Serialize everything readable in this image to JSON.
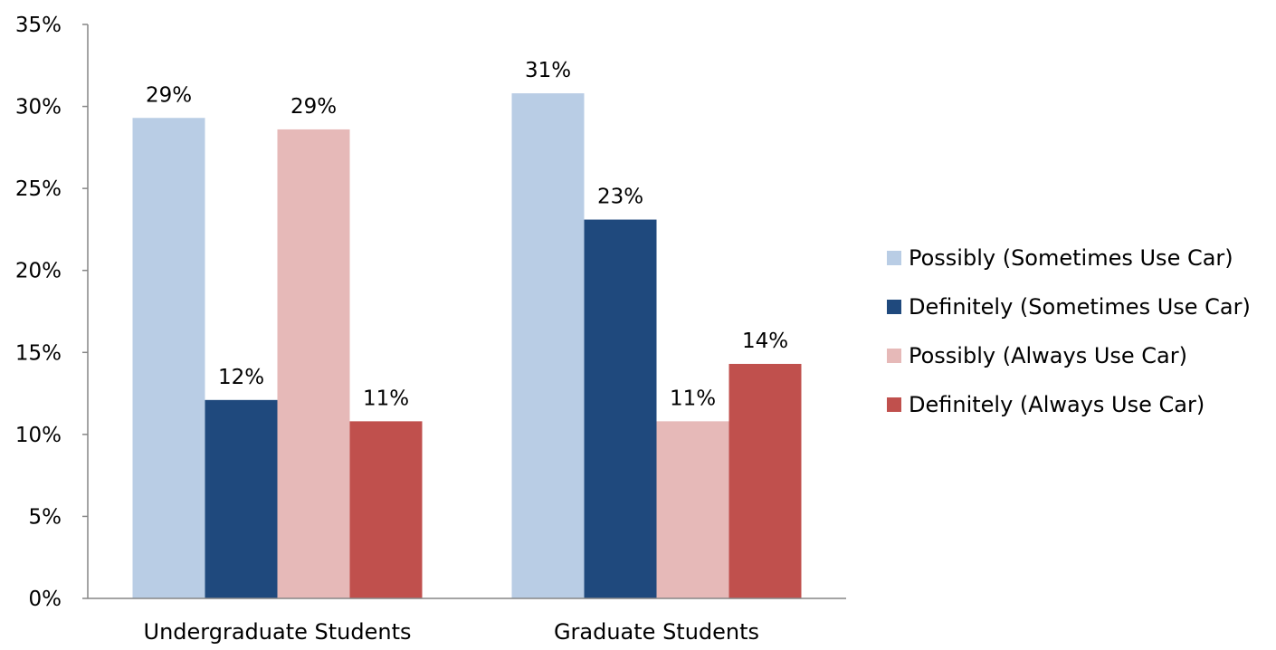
{
  "chart_data": {
    "type": "bar",
    "categories": [
      "Undergraduate Students",
      "Graduate Students"
    ],
    "series": [
      {
        "name": "Possibly (Sometimes Use Car)",
        "values": [
          29.3,
          30.8
        ],
        "labels": [
          "29%",
          "31%"
        ],
        "color": "#b9cde5"
      },
      {
        "name": "Definitely (Sometimes Use Car)",
        "values": [
          12.1,
          23.1
        ],
        "labels": [
          "12%",
          "23%"
        ],
        "color": "#1f497d"
      },
      {
        "name": "Possibly (Always Use Car)",
        "values": [
          28.6,
          10.8
        ],
        "labels": [
          "29%",
          "11%"
        ],
        "color": "#e6b9b8"
      },
      {
        "name": "Definitely (Always Use Car)",
        "values": [
          10.8,
          14.3
        ],
        "labels": [
          "11%",
          "14%"
        ],
        "color": "#c0504d"
      }
    ],
    "ylim": [
      0,
      35
    ],
    "yticks": [
      "0%",
      "5%",
      "10%",
      "15%",
      "20%",
      "25%",
      "30%",
      "35%"
    ],
    "grid": false,
    "legend": "right"
  }
}
